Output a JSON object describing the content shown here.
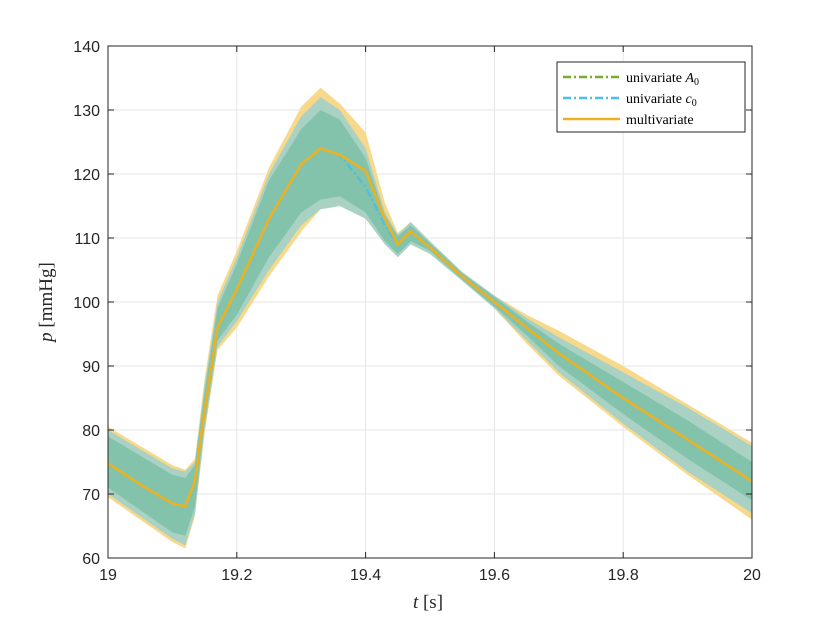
{
  "chart_data": {
    "type": "line",
    "xlabel": "t [s]",
    "ylabel": "p [mmHg]",
    "xlim": [
      19,
      20
    ],
    "ylim": [
      60,
      140
    ],
    "xticks": [
      19,
      19.2,
      19.4,
      19.6,
      19.8,
      20
    ],
    "xtick_labels": [
      "19",
      "19.2",
      "19.4",
      "19.6",
      "19.8",
      "20"
    ],
    "yticks": [
      60,
      70,
      80,
      90,
      100,
      110,
      120,
      130,
      140
    ],
    "ytick_labels": [
      "60",
      "70",
      "80",
      "90",
      "100",
      "110",
      "120",
      "130",
      "140"
    ],
    "grid": true,
    "legend_position": "top-right",
    "x": [
      19.0,
      19.05,
      19.1,
      19.12,
      19.135,
      19.15,
      19.17,
      19.2,
      19.25,
      19.3,
      19.33,
      19.36,
      19.4,
      19.43,
      19.45,
      19.47,
      19.5,
      19.55,
      19.6,
      19.65,
      19.7,
      19.8,
      19.9,
      20.0
    ],
    "series": [
      {
        "name": "univariate A0",
        "color": "#77AC30",
        "style": "dash-dot",
        "mean": [
          74.8,
          71.5,
          68.5,
          68.1,
          72,
          83,
          96,
          102,
          113,
          121.5,
          124,
          123,
          118,
          112,
          109,
          111,
          108.5,
          104,
          100,
          96,
          92,
          85,
          78.5,
          72
        ],
        "band_outer_lower": [
          70,
          66.5,
          63,
          62,
          67,
          80,
          93,
          97,
          105,
          112,
          114.5,
          115,
          113,
          109,
          107,
          109,
          107.5,
          103.3,
          99,
          94,
          89,
          81,
          73.5,
          67
        ],
        "band_outer_upper": [
          80,
          77,
          74,
          73.5,
          75,
          87,
          100,
          107,
          120,
          129,
          132,
          130,
          124,
          114,
          110.5,
          112.5,
          109.5,
          104.7,
          101,
          97.5,
          94.5,
          89,
          83.5,
          77.5
        ]
      },
      {
        "name": "univariate c0",
        "color": "#4DBEEE",
        "style": "dash-dot",
        "mean": [
          74.8,
          71.5,
          68.5,
          68.1,
          72,
          83,
          96,
          102,
          113,
          121.5,
          124,
          123,
          118,
          112,
          109,
          111,
          108.5,
          104,
          100,
          96,
          92,
          85,
          78.5,
          72
        ],
        "band_outer_lower": [
          71,
          67.5,
          64,
          63.5,
          68,
          81,
          94,
          98,
          107,
          114,
          116,
          116.5,
          114,
          109.5,
          107.5,
          109.5,
          108,
          103.5,
          99.3,
          94.8,
          90,
          82.5,
          75.5,
          69
        ],
        "band_outer_upper": [
          79,
          76,
          73,
          72.5,
          74.5,
          86,
          99,
          106,
          119,
          127,
          130,
          128.5,
          122.5,
          113.5,
          110.3,
          112,
          109.2,
          104.5,
          100.8,
          97,
          93.5,
          87.5,
          81.5,
          75
        ]
      },
      {
        "name": "multivariate",
        "color": "#EDB120",
        "style": "solid",
        "mean": [
          74.8,
          71.5,
          68.5,
          68.1,
          72,
          83,
          96,
          102,
          113,
          121.5,
          124,
          123,
          120.5,
          113,
          109,
          111,
          108.5,
          104,
          100,
          96,
          92,
          85,
          78.5,
          72
        ],
        "band_outer_lower": [
          69.5,
          66,
          62.5,
          61.5,
          66.5,
          79.5,
          92.5,
          96,
          104,
          111,
          114.5,
          115,
          114.5,
          110.5,
          108.3,
          110,
          108,
          103.5,
          99,
          93.5,
          88.5,
          80.5,
          73,
          66
        ],
        "band_outer_upper": [
          80.5,
          77.5,
          74.5,
          73.8,
          75.5,
          88,
          101,
          108,
          121,
          130.5,
          133.5,
          131,
          126.5,
          115.5,
          110.8,
          112.5,
          109.5,
          104.5,
          101,
          98,
          95.5,
          90,
          84,
          78
        ]
      }
    ]
  },
  "legend": {
    "items": [
      {
        "name_plain": "univariate ",
        "name_italic": "A",
        "name_sub": "0",
        "color": "#77AC30",
        "style": "dash-dot"
      },
      {
        "name_plain": "univariate ",
        "name_italic": "c",
        "name_sub": "0",
        "color": "#4DBEEE",
        "style": "dash-dot"
      },
      {
        "name_plain": "multivariate",
        "name_italic": "",
        "name_sub": "",
        "color": "#EDB120",
        "style": "solid"
      }
    ]
  },
  "axis_labels": {
    "x_var": "t",
    "x_unit": " [s]",
    "y_var": "p",
    "y_unit": " [mmHg]"
  },
  "colors": {
    "band_multivariate_outer": "#F8D88A",
    "band_teal_outer": "#A9D1C4",
    "band_teal_inner": "#7FC1A8",
    "grid": "#E6E6E6",
    "axis": "#262626"
  }
}
